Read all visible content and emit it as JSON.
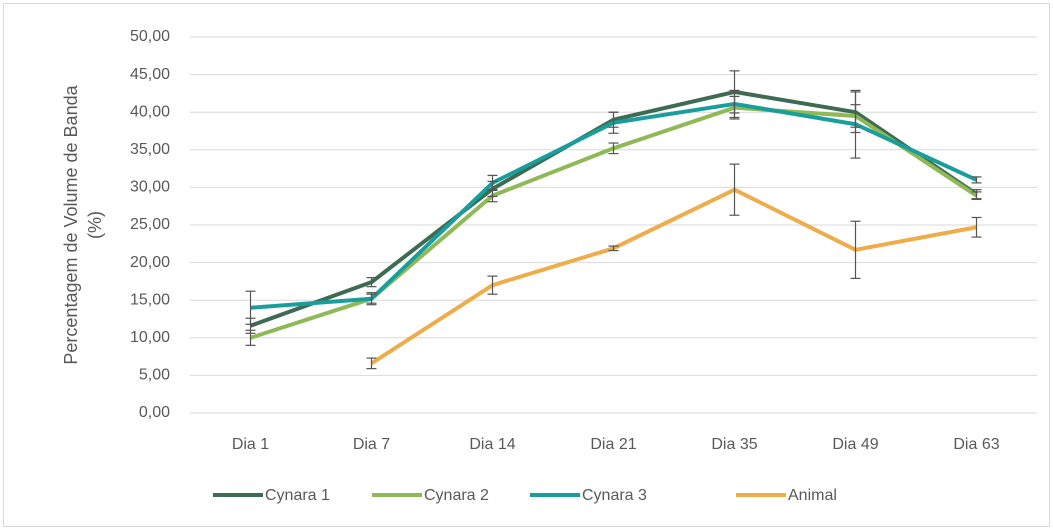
{
  "chart_data": {
    "type": "line",
    "y_label_lines": [
      "Percentagem de Volume de Banda",
      "(%)"
    ],
    "categories": [
      "Dia 1",
      "Dia 7",
      "Dia 14",
      "Dia 21",
      "Dia 35",
      "Dia 49",
      "Dia 63"
    ],
    "series": [
      {
        "name": "Cynara 1",
        "color": "#3d6b53",
        "values": [
          11.6,
          17.4,
          29.8,
          39.0,
          42.7,
          40.0,
          29.1
        ],
        "errors": [
          1.0,
          0.6,
          1.0,
          1.0,
          2.8,
          2.7,
          0.6
        ]
      },
      {
        "name": "Cynara 2",
        "color": "#8fb957",
        "values": [
          10.0,
          15.2,
          28.9,
          35.2,
          40.6,
          39.5,
          28.9
        ],
        "errors": [
          1.0,
          0.6,
          0.8,
          0.7,
          1.5,
          1.5,
          0.5
        ]
      },
      {
        "name": "Cynara 3",
        "color": "#1a9e9c",
        "values": [
          14.0,
          15.2,
          30.6,
          38.6,
          41.1,
          38.4,
          31.0
        ],
        "errors": [
          2.2,
          0.8,
          1.0,
          1.4,
          1.8,
          4.5,
          0.4
        ]
      },
      {
        "name": "Animal",
        "color": "#eeac4a",
        "values": [
          null,
          6.6,
          17.0,
          21.9,
          29.7,
          21.7,
          24.7
        ],
        "errors": [
          null,
          0.7,
          1.2,
          0.3,
          3.4,
          3.8,
          1.3
        ]
      }
    ],
    "error_color": "#555555",
    "ylim": [
      0,
      50
    ],
    "yticks": [
      {
        "value": 0,
        "label": "0,00"
      },
      {
        "value": 5,
        "label": "5,00"
      },
      {
        "value": 10,
        "label": "10,00"
      },
      {
        "value": 15,
        "label": "15,00"
      },
      {
        "value": 20,
        "label": "20,00"
      },
      {
        "value": 25,
        "label": "25,00"
      },
      {
        "value": 30,
        "label": "30,00"
      },
      {
        "value": 35,
        "label": "35,00"
      },
      {
        "value": 40,
        "label": "40,00"
      },
      {
        "value": 45,
        "label": "45,00"
      },
      {
        "value": 50,
        "label": "50,00"
      }
    ],
    "grid": true,
    "legend": "bottom"
  }
}
